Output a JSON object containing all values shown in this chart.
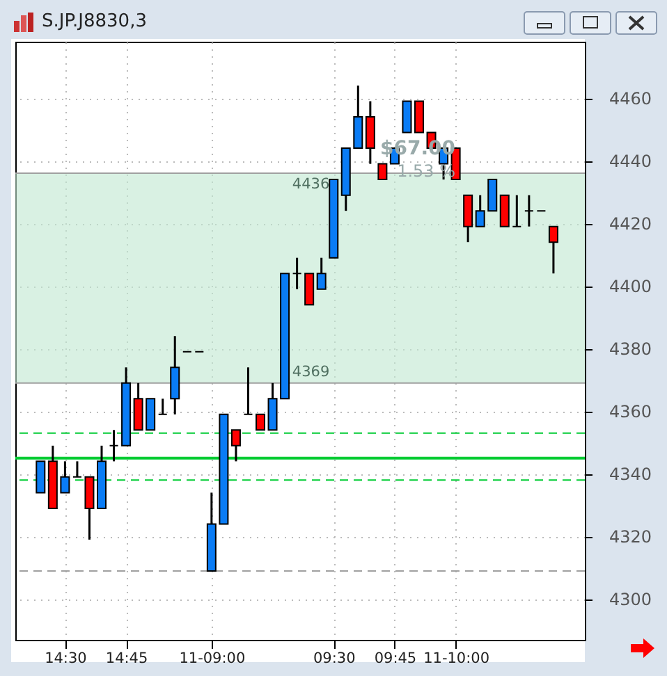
{
  "chart_data": {
    "type": "candlestick",
    "title": "S.JP.J8830,3",
    "categories": [
      null,
      null,
      "14:30",
      null,
      null,
      null,
      null,
      "14:45",
      null,
      null,
      null,
      null,
      null,
      null,
      "11-09:00",
      null,
      null,
      null,
      null,
      null,
      null,
      null,
      null,
      null,
      "09:30",
      null,
      null,
      null,
      null,
      "09:45",
      null,
      null,
      null,
      null,
      "11-10:00",
      null,
      null,
      null,
      null,
      null,
      null,
      null,
      null
    ],
    "ohlc": [
      [
        4334,
        4344,
        4334,
        4344
      ],
      [
        4344,
        4349,
        4329,
        4329
      ],
      [
        4334,
        4344,
        4334,
        4339
      ],
      [
        4339,
        4344,
        4339,
        4339
      ],
      [
        4339,
        4339,
        4319,
        4329
      ],
      [
        4329,
        4349,
        4329,
        4344
      ],
      [
        4349,
        4354,
        4344,
        4349
      ],
      [
        4349,
        4374,
        4349,
        4369
      ],
      [
        4364,
        4369,
        4354,
        4354
      ],
      [
        4354,
        4364,
        4354,
        4364
      ],
      [
        4359,
        4364,
        4359,
        4359
      ],
      [
        4364,
        4384,
        4359,
        4374
      ],
      [
        4379,
        4379,
        4379,
        4379
      ],
      [
        4379,
        4379,
        4379,
        4379
      ],
      [
        4309,
        4334,
        4309,
        4324
      ],
      [
        4324,
        4359,
        4324,
        4359
      ],
      [
        4354,
        4354,
        4344,
        4349
      ],
      [
        4359,
        4374,
        4359,
        4359
      ],
      [
        4359,
        4359,
        4354,
        4354
      ],
      [
        4354,
        4369,
        4354,
        4364
      ],
      [
        4364,
        4404,
        4364,
        4404
      ],
      [
        4404,
        4409,
        4399,
        4404
      ],
      [
        4404,
        4404,
        4394,
        4394
      ],
      [
        4399,
        4409,
        4399,
        4404
      ],
      [
        4409,
        4434,
        4409,
        4434
      ],
      [
        4429,
        4444,
        4424,
        4444
      ],
      [
        4444,
        4464,
        4444,
        4454
      ],
      [
        4454,
        4459,
        4439,
        4444
      ],
      [
        4439,
        4439,
        4434,
        4434
      ],
      [
        4439,
        4444,
        4439,
        4444
      ],
      [
        4449,
        4459,
        4449,
        4459
      ],
      [
        4459,
        4459,
        4449,
        4449
      ],
      [
        4449,
        4449,
        4444,
        4444
      ],
      [
        4439,
        4444,
        4434,
        4444
      ],
      [
        4444,
        4444,
        4434,
        4434
      ],
      [
        4429,
        4429,
        4414,
        4419
      ],
      [
        4419,
        4429,
        4419,
        4424
      ],
      [
        4424,
        4434,
        4424,
        4434
      ],
      [
        4429,
        4429,
        4419,
        4419
      ],
      [
        4419,
        4429,
        4419,
        4419
      ],
      [
        4424,
        4429,
        4419,
        4424
      ],
      [
        4424,
        4424,
        4424,
        4424
      ],
      [
        4419,
        4419,
        4404,
        4414
      ]
    ],
    "colors": [
      "#0a7cf5",
      "#ff0000",
      "#0a7cf5",
      "#000000",
      "#ff0000",
      "#0a7cf5",
      "#000000",
      "#0a7cf5",
      "#ff0000",
      "#0a7cf5",
      "#000000",
      "#0a7cf5",
      "#000000",
      "#000000",
      "#0a7cf5",
      "#0a7cf5",
      "#ff0000",
      "#000000",
      "#ff0000",
      "#0a7cf5",
      "#0a7cf5",
      "#000000",
      "#ff0000",
      "#0a7cf5",
      "#0a7cf5",
      "#0a7cf5",
      "#0a7cf5",
      "#ff0000",
      "#ff0000",
      "#0a7cf5",
      "#0a7cf5",
      "#ff0000",
      "#ff0000",
      "#0a7cf5",
      "#ff0000",
      "#ff0000",
      "#0a7cf5",
      "#0a7cf5",
      "#ff0000",
      "#000000",
      "#000000",
      "#000000",
      "#ff0000"
    ],
    "ylim": [
      4287,
      4478
    ],
    "yticks": [
      {
        "value": 4300,
        "label": "4300"
      },
      {
        "value": 4320,
        "label": "4320"
      },
      {
        "value": 4340,
        "label": "4340"
      },
      {
        "value": 4360,
        "label": "4360"
      },
      {
        "value": 4380,
        "label": "4380"
      },
      {
        "value": 4400,
        "label": "4400"
      },
      {
        "value": 4420,
        "label": "4420"
      },
      {
        "value": 4440,
        "label": "4440"
      },
      {
        "value": 4460,
        "label": "4460"
      }
    ],
    "grid": true,
    "ref_lines": [
      {
        "axis": "y",
        "value": 4353,
        "color": "#00cc33",
        "line_style": "dashed"
      },
      {
        "axis": "y",
        "value": 4345,
        "color": "#00cc33",
        "line_style": "solid"
      },
      {
        "axis": "y",
        "value": 4338,
        "color": "#00cc33",
        "line_style": "dashed"
      },
      {
        "axis": "y",
        "value": 4309,
        "color": "#a0a0a0",
        "line_style": "dashed"
      },
      {
        "axis": "y",
        "value": 4369,
        "label": "4369",
        "color": "#a0a0a0",
        "line_style": "solid"
      },
      {
        "axis": "y",
        "value": 4436,
        "label": "4436",
        "color": "#a0a0a0",
        "line_style": "solid"
      }
    ],
    "bands": [
      {
        "axis": "y",
        "from": 4369,
        "to": 4436,
        "color": "#bfe8d0"
      }
    ],
    "annotations": [
      "$67.00",
      "1.53 %"
    ]
  }
}
